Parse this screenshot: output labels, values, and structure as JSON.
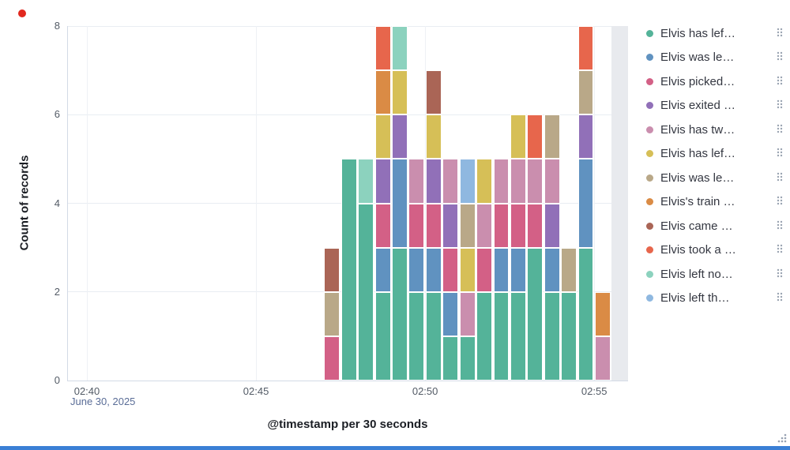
{
  "ui": {
    "indicator_red": "#e1281e",
    "accent_blue": "#3a7fd5",
    "partial_bucket_fill": "#e8eaee",
    "legend_action_icon": "grid-dots-icon",
    "resize_handle_icon": "drag-dots-icon"
  },
  "chart_data": {
    "type": "bar",
    "stacked": true,
    "title": "",
    "xlabel": "@timestamp per 30 seconds",
    "ylabel": "Count of records",
    "ylim": [
      0,
      8
    ],
    "y_ticks": [
      0,
      2,
      4,
      6,
      8
    ],
    "x_axis": {
      "start": "02:40",
      "end": "02:56",
      "bucket_seconds": 30,
      "tick_labels": [
        "02:40",
        "02:45",
        "02:50",
        "02:55"
      ],
      "date_label": "June 30, 2025"
    },
    "legend_position": "right",
    "series": [
      {
        "name": "Elvis has lef…",
        "color": "#54B399"
      },
      {
        "name": "Elvis was le…",
        "color": "#6092C0"
      },
      {
        "name": "Elvis picked…",
        "color": "#D36086"
      },
      {
        "name": "Elvis exited …",
        "color": "#9170B8"
      },
      {
        "name": "Elvis has tw…",
        "color": "#CA8EAE"
      },
      {
        "name": "Elvis has lef…",
        "color": "#D6BF57"
      },
      {
        "name": "Elvis was le…",
        "color": "#B9A888"
      },
      {
        "name": "Elvis's train …",
        "color": "#DA8B45"
      },
      {
        "name": "Elvis came …",
        "color": "#AA6556"
      },
      {
        "name": "Elvis took a …",
        "color": "#E7664C"
      },
      {
        "name": "Elvis left no…",
        "color": "#8CD2BE"
      },
      {
        "name": "Elvis left th…",
        "color": "#8FB8E0"
      }
    ],
    "buckets": [
      {
        "time": "02:47:00",
        "values": [
          0,
          0,
          1,
          0,
          0,
          0,
          1,
          0,
          1,
          0,
          0,
          0
        ]
      },
      {
        "time": "02:47:30",
        "values": [
          5,
          0,
          0,
          0,
          0,
          0,
          0,
          0,
          0,
          0,
          0,
          0
        ]
      },
      {
        "time": "02:48:00",
        "values": [
          4,
          0,
          0,
          0,
          0,
          0,
          0,
          0,
          0,
          0,
          1,
          0
        ]
      },
      {
        "time": "02:48:30",
        "values": [
          2,
          1,
          1,
          1,
          0,
          1,
          0,
          1,
          0,
          1,
          0,
          0
        ]
      },
      {
        "time": "02:49:00",
        "values": [
          3,
          2,
          0,
          1,
          0,
          1,
          0,
          0,
          0,
          0,
          1,
          0
        ]
      },
      {
        "time": "02:49:30",
        "values": [
          2,
          1,
          1,
          0,
          1,
          0,
          0,
          0,
          0,
          0,
          0,
          0
        ]
      },
      {
        "time": "02:50:00",
        "values": [
          2,
          1,
          1,
          1,
          0,
          1,
          0,
          0,
          1,
          0,
          0,
          0
        ]
      },
      {
        "time": "02:50:30",
        "values": [
          1,
          1,
          1,
          1,
          1,
          0,
          0,
          0,
          0,
          0,
          0,
          0
        ]
      },
      {
        "time": "02:51:00",
        "values": [
          1,
          0,
          0,
          0,
          1,
          1,
          1,
          0,
          0,
          0,
          0,
          1
        ]
      },
      {
        "time": "02:51:30",
        "values": [
          2,
          0,
          1,
          0,
          1,
          1,
          0,
          0,
          0,
          0,
          0,
          0
        ]
      },
      {
        "time": "02:52:00",
        "values": [
          2,
          1,
          1,
          0,
          1,
          0,
          0,
          0,
          0,
          0,
          0,
          0
        ]
      },
      {
        "time": "02:52:30",
        "values": [
          2,
          1,
          1,
          0,
          1,
          1,
          0,
          0,
          0,
          0,
          0,
          0
        ]
      },
      {
        "time": "02:53:00",
        "values": [
          3,
          0,
          1,
          0,
          1,
          0,
          0,
          0,
          0,
          1,
          0,
          0
        ]
      },
      {
        "time": "02:53:30",
        "values": [
          2,
          1,
          0,
          1,
          1,
          0,
          1,
          0,
          0,
          0,
          0,
          0
        ]
      },
      {
        "time": "02:54:00",
        "values": [
          2,
          0,
          0,
          0,
          0,
          0,
          1,
          0,
          0,
          0,
          0,
          0
        ]
      },
      {
        "time": "02:54:30",
        "values": [
          3,
          2,
          0,
          1,
          0,
          0,
          1,
          0,
          0,
          1,
          0,
          0
        ]
      },
      {
        "time": "02:55:00",
        "values": [
          0,
          0,
          0,
          0,
          1,
          0,
          0,
          1,
          0,
          0,
          0,
          0
        ]
      }
    ],
    "partial_bucket": {
      "time": "02:55:30"
    }
  }
}
